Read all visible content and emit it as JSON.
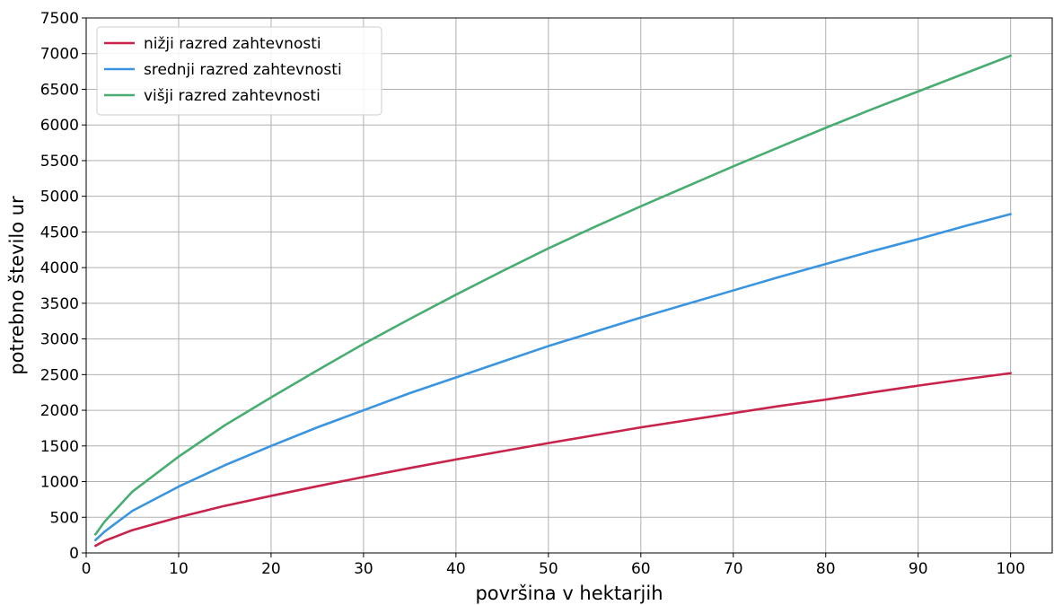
{
  "chart_data": {
    "type": "line",
    "title": "",
    "xlabel": "površina v hektarjih",
    "ylabel": "potrebno število ur",
    "xlim": [
      0,
      104.5
    ],
    "ylim": [
      0,
      7500
    ],
    "x_ticks": [
      0,
      10,
      20,
      30,
      40,
      50,
      60,
      70,
      80,
      90,
      100
    ],
    "y_ticks": [
      0,
      500,
      1000,
      1500,
      2000,
      2500,
      3000,
      3500,
      4000,
      4500,
      5000,
      5500,
      6000,
      6500,
      7000,
      7500
    ],
    "grid": true,
    "legend_position": "top-left",
    "x": [
      1,
      2,
      5,
      10,
      15,
      20,
      25,
      30,
      35,
      40,
      45,
      50,
      55,
      60,
      65,
      70,
      75,
      80,
      85,
      90,
      95,
      100
    ],
    "series": [
      {
        "name": "nižji razred zahtevnosti",
        "color": "#c8234a",
        "values": [
          100,
          170,
          320,
          500,
          660,
          800,
          935,
          1065,
          1190,
          1310,
          1425,
          1540,
          1650,
          1760,
          1860,
          1960,
          2060,
          2150,
          2250,
          2345,
          2435,
          2520
        ]
      },
      {
        "name": "srednji razred zahtevnosti",
        "color": "#3a95e0",
        "values": [
          180,
          300,
          590,
          930,
          1230,
          1500,
          1760,
          2000,
          2240,
          2460,
          2680,
          2900,
          3100,
          3300,
          3490,
          3680,
          3870,
          4050,
          4230,
          4400,
          4580,
          4750
        ]
      },
      {
        "name": "višji razred zahtevnosti",
        "color": "#49ad72",
        "values": [
          260,
          440,
          860,
          1350,
          1790,
          2180,
          2560,
          2930,
          3280,
          3620,
          3950,
          4270,
          4570,
          4860,
          5140,
          5420,
          5690,
          5960,
          6220,
          6470,
          6720,
          6970
        ]
      }
    ]
  }
}
